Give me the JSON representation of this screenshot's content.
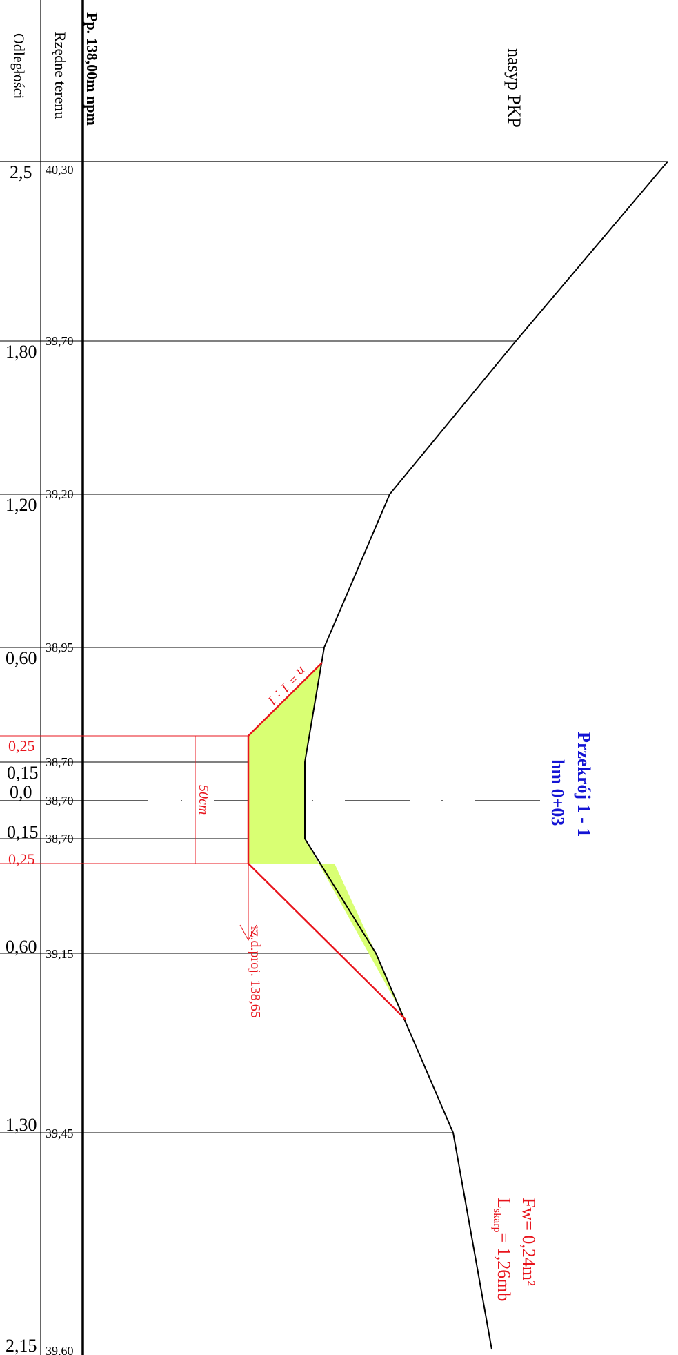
{
  "headers": {
    "distances": "Odległości",
    "elevations": "Rzędne terenu",
    "datum": "Pp. 138,00m npm"
  },
  "labels": {
    "embankment": "nasyp PKP",
    "section_title": "Przekrój  1 - 1",
    "section_chainage": "hm 0+03",
    "slope": "n = 1 : 1",
    "depth": "50cm",
    "design_level": "rz.d.proj. 138,65",
    "area": "Fw= 0,24m²",
    "length_prefix": "L",
    "length_sub": "skarp",
    "length_value": "= 1,26mb"
  },
  "stations": [
    {
      "distance": "2,5",
      "elevation": "40,30"
    },
    {
      "distance": "1,80",
      "elevation": "39,70"
    },
    {
      "distance": "1,20",
      "elevation": "39,20"
    },
    {
      "distance": "0,60",
      "elevation": "38,95"
    },
    {
      "distance": "0,25",
      "elevation": ""
    },
    {
      "distance": "0,15",
      "elevation": "38,70"
    },
    {
      "distance": "0,0",
      "elevation": "38,70"
    },
    {
      "distance": "0,15",
      "elevation": "38,70"
    },
    {
      "distance": "0,25",
      "elevation": ""
    },
    {
      "distance": "0,60",
      "elevation": "39,15"
    },
    {
      "distance": "1,30",
      "elevation": "39,45"
    },
    {
      "distance": "2,15",
      "elevation": "39,60"
    }
  ],
  "colors": {
    "line": "#000000",
    "design": "#e8141c",
    "fill": "#d9ff73",
    "title": "#1414d4"
  }
}
